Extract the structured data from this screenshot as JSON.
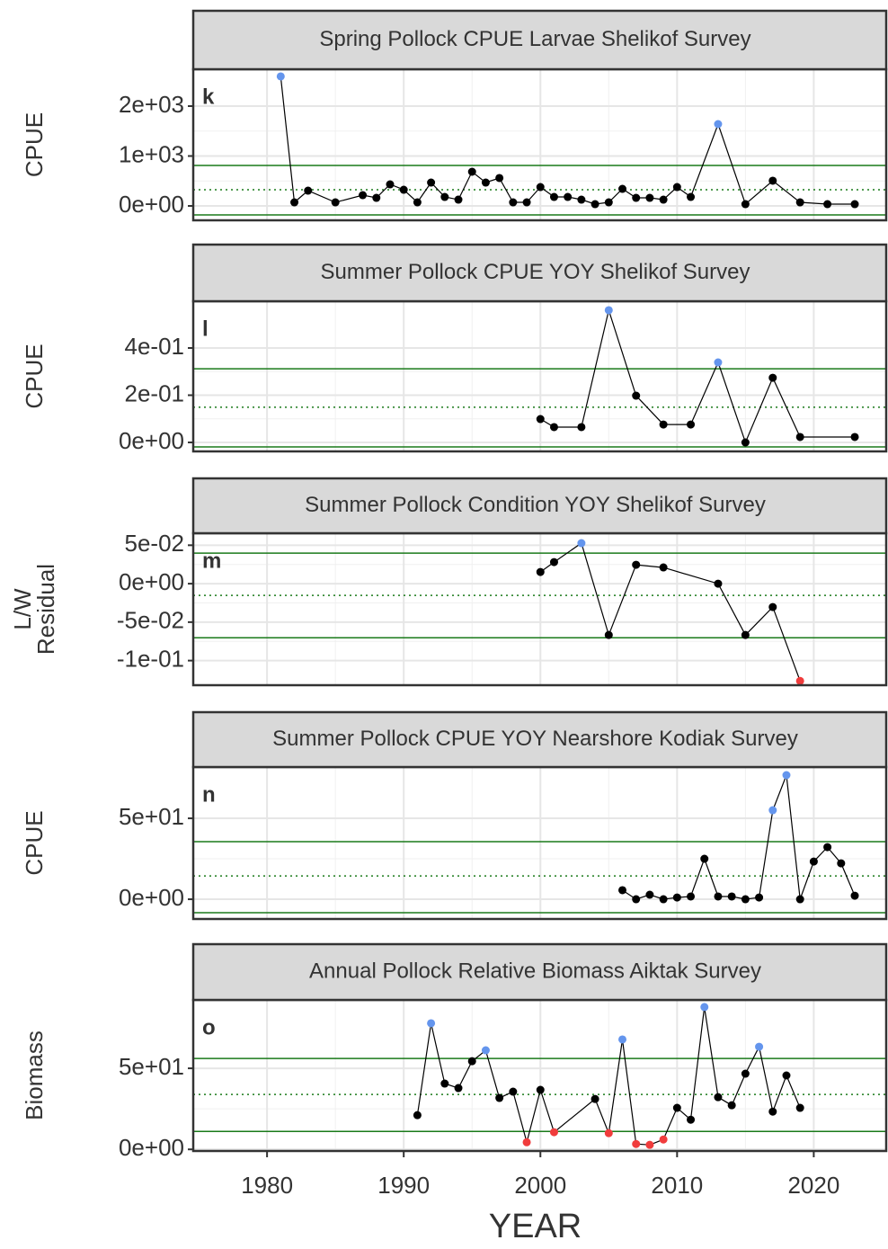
{
  "chart_data": [
    {
      "type": "line",
      "title": "Spring Pollock CPUE Larvae Shelikof Survey",
      "annotation": "k",
      "ylabel": [
        "CPUE"
      ],
      "x": [
        1981,
        1982,
        1983,
        1985,
        1987,
        1988,
        1989,
        1990,
        1991,
        1992,
        1993,
        1994,
        1995,
        1996,
        1997,
        1998,
        1999,
        2000,
        2001,
        2002,
        2003,
        2004,
        2005,
        2006,
        2007,
        2008,
        2009,
        2010,
        2011,
        2013,
        2015,
        2017,
        2019,
        2021,
        2023
      ],
      "values": [
        2595,
        72,
        306,
        72,
        216,
        162,
        432,
        324,
        72,
        468,
        180,
        126,
        685,
        468,
        559,
        72,
        72,
        378,
        180,
        180,
        126,
        36,
        72,
        342,
        162,
        162,
        126,
        378,
        180,
        1640,
        36,
        505,
        72,
        36,
        36
      ],
      "ylim": [
        -288,
        2739
      ],
      "yticks": [
        {
          "value": 0,
          "label": "0e+00"
        },
        {
          "value": 1000,
          "label": "1e+03"
        },
        {
          "value": 2000,
          "label": "2e+03"
        }
      ],
      "xlim": [
        1974.6,
        2025.3
      ],
      "xticks": [
        1980,
        1990,
        2000,
        2010,
        2020
      ],
      "upper_line": 811,
      "mean_line": 324,
      "lower_line": -180,
      "color": "#000000",
      "high_color": "#6495ed",
      "low_color": "#f03c3c",
      "line_color": "#1a7a1a",
      "grid": true
    },
    {
      "type": "line",
      "title": "Summer Pollock CPUE YOY Shelikof Survey",
      "annotation": "l",
      "ylabel": [
        "CPUE"
      ],
      "x": [
        2000,
        2001,
        2003,
        2005,
        2007,
        2009,
        2011,
        2013,
        2015,
        2017,
        2019,
        2023
      ],
      "values": [
        0.099,
        0.065,
        0.065,
        0.56,
        0.198,
        0.076,
        0.076,
        0.339,
        0,
        0.274,
        0.023,
        0.023
      ],
      "ylim": [
        -0.038,
        0.598
      ],
      "yticks": [
        {
          "value": 0,
          "label": "0e+00"
        },
        {
          "value": 0.2,
          "label": "2e-01"
        },
        {
          "value": 0.4,
          "label": "4e-01"
        }
      ],
      "xlim": [
        1974.6,
        2025.3
      ],
      "xticks": [
        1980,
        1990,
        2000,
        2010,
        2020
      ],
      "upper_line": 0.312,
      "mean_line": 0.149,
      "lower_line": -0.019,
      "color": "#000000",
      "high_color": "#6495ed",
      "low_color": "#f03c3c",
      "line_color": "#1a7a1a",
      "grid": true
    },
    {
      "type": "line",
      "title": "Summer Pollock Condition YOY Shelikof Survey",
      "annotation": "m",
      "ylabel": [
        "L/W",
        "Residual"
      ],
      "x": [
        2000,
        2001,
        2003,
        2005,
        2007,
        2009,
        2013,
        2015,
        2017,
        2019
      ],
      "values": [
        0.0152,
        0.0281,
        0.0527,
        -0.0667,
        0.0246,
        0.0211,
        0,
        -0.0667,
        -0.0304,
        -0.1265
      ],
      "ylim": [
        -0.132,
        0.0656
      ],
      "yticks": [
        {
          "value": -0.1,
          "label": "-1e-01"
        },
        {
          "value": -0.05,
          "label": "-5e-02"
        },
        {
          "value": 0,
          "label": "0e+00"
        },
        {
          "value": 0.05,
          "label": "5e-02"
        }
      ],
      "xlim": [
        1974.6,
        2025.3
      ],
      "xticks": [
        1980,
        1990,
        2000,
        2010,
        2020
      ],
      "upper_line": 0.0398,
      "mean_line": -0.0152,
      "lower_line": -0.0703,
      "color": "#000000",
      "high_color": "#6495ed",
      "low_color": "#f03c3c",
      "line_color": "#1a7a1a",
      "grid": true
    },
    {
      "type": "line",
      "title": "Summer Pollock CPUE YOY Nearshore Kodiak Survey",
      "annotation": "n",
      "ylabel": [
        "CPUE"
      ],
      "x": [
        2006,
        2007,
        2008,
        2009,
        2010,
        2011,
        2012,
        2013,
        2014,
        2015,
        2016,
        2017,
        2018,
        2019,
        2020,
        2021,
        2022,
        2023
      ],
      "values": [
        5.6,
        0,
        2.8,
        0,
        1.1,
        1.7,
        25,
        1.7,
        1.7,
        0,
        1.1,
        55,
        76.7,
        0,
        23.3,
        32.2,
        22.2,
        2.2
      ],
      "ylim": [
        -12.2,
        81.7
      ],
      "yticks": [
        {
          "value": 0,
          "label": "0e+00"
        },
        {
          "value": 50,
          "label": "5e+01"
        }
      ],
      "xlim": [
        1974.6,
        2025.3
      ],
      "xticks": [
        1980,
        1990,
        2000,
        2010,
        2020
      ],
      "upper_line": 35.6,
      "mean_line": 14.4,
      "lower_line": -8.3,
      "color": "#000000",
      "high_color": "#6495ed",
      "low_color": "#f03c3c",
      "line_color": "#1a7a1a",
      "grid": true
    },
    {
      "type": "line",
      "title": "Annual Pollock Relative Biomass Aiktak Survey",
      "annotation": "o",
      "ylabel": [
        "Biomass"
      ],
      "xlabel": "YEAR",
      "x": [
        1991,
        1992,
        1993,
        1994,
        1995,
        1996,
        1997,
        1998,
        1999,
        2000,
        2001,
        2004,
        2005,
        2006,
        2007,
        2008,
        2009,
        2010,
        2011,
        2012,
        2013,
        2014,
        2015,
        2016,
        2017,
        2018,
        2019
      ],
      "values": [
        21.1,
        77.8,
        40.6,
        37.8,
        54.4,
        61.1,
        31.7,
        35.6,
        4.4,
        36.7,
        10.6,
        31.1,
        10,
        67.8,
        3.3,
        2.8,
        6.1,
        25.6,
        18.3,
        87.8,
        32.2,
        27.2,
        46.7,
        63.3,
        23.3,
        45.6,
        25.6
      ],
      "ylim": [
        -1,
        92.2
      ],
      "yticks": [
        {
          "value": 0,
          "label": "0e+00"
        },
        {
          "value": 50,
          "label": "5e+01"
        }
      ],
      "xlim": [
        1974.6,
        2025.3
      ],
      "xticks": [
        1980,
        1990,
        2000,
        2010,
        2020
      ],
      "upper_line": 56.1,
      "mean_line": 33.9,
      "lower_line": 11.1,
      "color": "#000000",
      "high_color": "#6495ed",
      "low_color": "#f03c3c",
      "line_color": "#1a7a1a",
      "grid": true
    }
  ]
}
